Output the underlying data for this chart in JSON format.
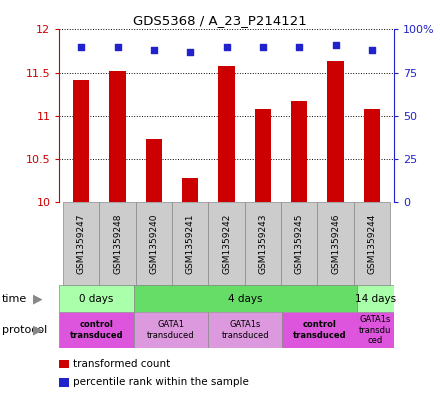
{
  "title": "GDS5368 / A_23_P214121",
  "samples": [
    "GSM1359247",
    "GSM1359248",
    "GSM1359240",
    "GSM1359241",
    "GSM1359242",
    "GSM1359243",
    "GSM1359245",
    "GSM1359246",
    "GSM1359244"
  ],
  "transformed_counts": [
    11.42,
    11.52,
    10.73,
    10.28,
    11.58,
    11.08,
    11.17,
    11.63,
    11.08
  ],
  "percentile_ranks": [
    90,
    90,
    88,
    87,
    90,
    90,
    90,
    91,
    88
  ],
  "ylim_left": [
    10,
    12
  ],
  "ylim_right": [
    0,
    100
  ],
  "yticks_left": [
    10,
    10.5,
    11,
    11.5,
    12
  ],
  "yticks_right": [
    0,
    25,
    50,
    75,
    100
  ],
  "ytick_right_labels": [
    "0",
    "25",
    "50",
    "75",
    "100%"
  ],
  "bar_color": "#cc0000",
  "dot_color": "#2222cc",
  "bar_width": 0.45,
  "time_groups": [
    {
      "label": "0 days",
      "start": 0,
      "end": 2,
      "color": "#aaffaa"
    },
    {
      "label": "4 days",
      "start": 2,
      "end": 8,
      "color": "#66dd66"
    },
    {
      "label": "14 days",
      "start": 8,
      "end": 9,
      "color": "#aaffaa"
    }
  ],
  "protocol_groups": [
    {
      "label": "control\ntransduced",
      "start": 0,
      "end": 2,
      "color": "#dd55dd",
      "bold": true
    },
    {
      "label": "GATA1\ntransduced",
      "start": 2,
      "end": 4,
      "color": "#dd99dd",
      "bold": false
    },
    {
      "label": "GATA1s\ntransduced",
      "start": 4,
      "end": 6,
      "color": "#dd99dd",
      "bold": false
    },
    {
      "label": "control\ntransduced",
      "start": 6,
      "end": 8,
      "color": "#dd55dd",
      "bold": true
    },
    {
      "label": "GATA1s\ntransdu\nced",
      "start": 8,
      "end": 9,
      "color": "#dd55dd",
      "bold": false
    }
  ],
  "legend_items": [
    {
      "color": "#cc0000",
      "label": "transformed count"
    },
    {
      "color": "#2222cc",
      "label": "percentile rank within the sample"
    }
  ],
  "left_axis_color": "#cc0000",
  "right_axis_color": "#2222cc",
  "sample_bg_color": "#cccccc",
  "sample_border_color": "#888888"
}
